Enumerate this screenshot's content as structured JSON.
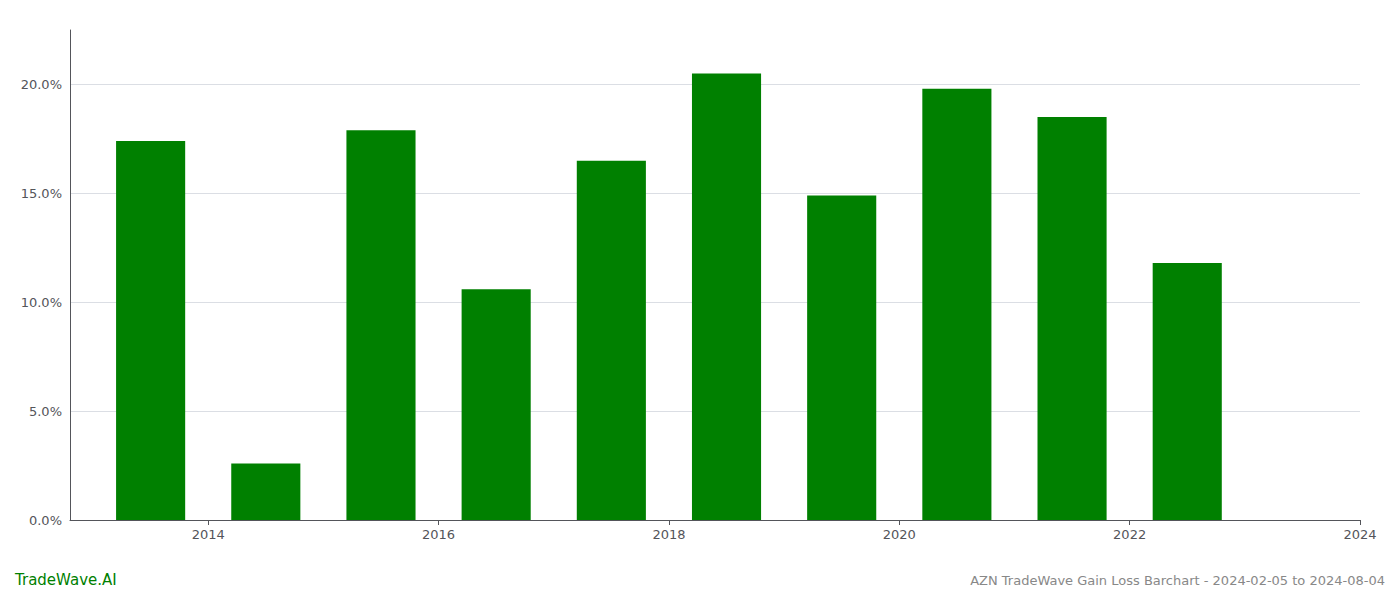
{
  "chart_data": {
    "type": "bar",
    "title": "AZN TradeWave Gain Loss Barchart - 2024-02-05 to 2024-08-04",
    "annotations": [
      "TradeWave.AI"
    ],
    "x": [
      2013.5,
      2014.5,
      2015.5,
      2016.5,
      2017.5,
      2018.5,
      2019.5,
      2020.5,
      2021.5,
      2022.5
    ],
    "values": [
      0.174,
      0.026,
      0.179,
      0.106,
      0.165,
      0.205,
      0.149,
      0.198,
      0.185,
      0.118
    ],
    "color": "#008000",
    "xlim": [
      2012.8,
      2024.0
    ],
    "xticks": [
      2014,
      2016,
      2018,
      2020,
      2022,
      2024
    ],
    "ylim": [
      0,
      0.225
    ],
    "yticks": [
      {
        "value": 0.0,
        "label": "0.0%"
      },
      {
        "value": 0.05,
        "label": "5.0%"
      },
      {
        "value": 0.1,
        "label": "10.0%"
      },
      {
        "value": 0.15,
        "label": "15.0%"
      },
      {
        "value": 0.2,
        "label": "20.0%"
      }
    ],
    "grid": true
  }
}
